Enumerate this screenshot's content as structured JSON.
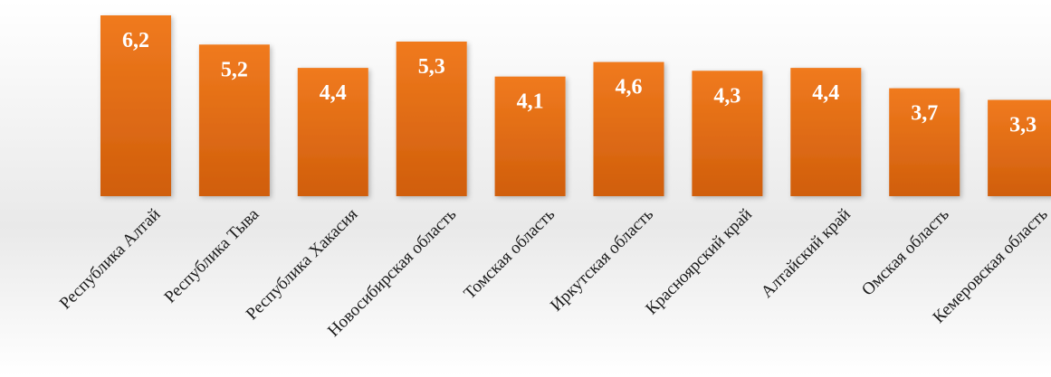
{
  "chart_data": {
    "type": "bar",
    "title": "",
    "xlabel": "",
    "ylabel": "",
    "categories": [
      "Республика Алтай",
      "Республика Тыва",
      "Республика Хакасия",
      "Новосибирская область",
      "Томская область",
      "Иркутская область",
      "Красноярский край",
      "Алтайский край",
      "Омская область",
      "Кемеровская область"
    ],
    "values": [
      6.2,
      5.2,
      4.4,
      5.3,
      4.1,
      4.6,
      4.3,
      4.4,
      3.7,
      3.3
    ],
    "value_labels": [
      "6,2",
      "5,2",
      "4,4",
      "5,3",
      "4,1",
      "4,6",
      "4,3",
      "4,4",
      "3,7",
      "3,3"
    ],
    "ylim": [
      0,
      6.2
    ],
    "grid": false,
    "legend": "none",
    "colors": {
      "bar_top": "#f07a1e",
      "bar_bottom": "#d2600e",
      "label": "#ffffff"
    }
  }
}
